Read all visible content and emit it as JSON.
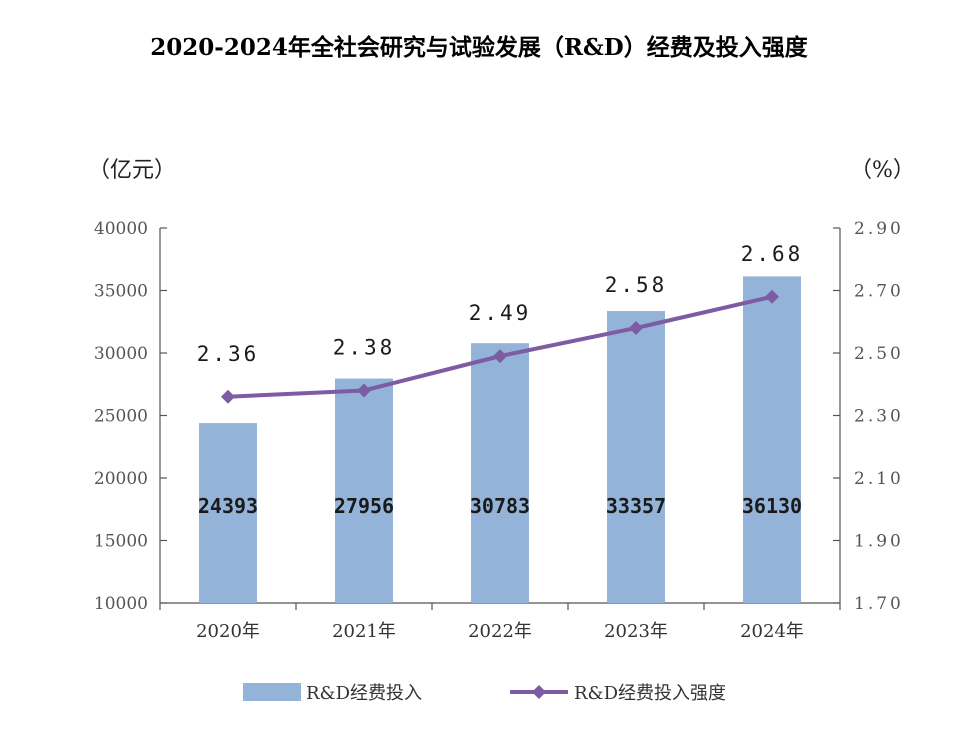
{
  "title": "2020-2024年全社会研究与试验发展（R&D）经费及投入强度",
  "left_unit": "（亿元）",
  "right_unit": "（%）",
  "colors": {
    "bar": "#94b3d9",
    "line": "#7d5ca3",
    "axis": "#555555"
  },
  "legend": {
    "bar_label": "R&D经费投入",
    "line_label": "R&D经费投入强度"
  },
  "chart_data": {
    "type": "bar",
    "categories": [
      "2020年",
      "2021年",
      "2022年",
      "2023年",
      "2024年"
    ],
    "series": [
      {
        "name": "R&D经费投入",
        "type": "bar",
        "axis": "left",
        "values": [
          24393,
          27956,
          30783,
          33357,
          36130
        ]
      },
      {
        "name": "R&D经费投入强度",
        "type": "line",
        "axis": "right",
        "values": [
          2.36,
          2.38,
          2.49,
          2.58,
          2.68
        ]
      }
    ],
    "bar_labels": [
      "24393",
      "27956",
      "30783",
      "33357",
      "36130"
    ],
    "line_labels": [
      "2.36",
      "2.38",
      "2.49",
      "2.58",
      "2.68"
    ],
    "y_left": {
      "min": 10000,
      "max": 40000,
      "ticks": [
        "40000",
        "35000",
        "30000",
        "25000",
        "20000",
        "15000",
        "10000"
      ]
    },
    "y_right": {
      "min": 1.7,
      "max": 2.9,
      "ticks": [
        "2.90",
        "2.70",
        "2.50",
        "2.30",
        "2.10",
        "1.90",
        "1.70"
      ]
    },
    "grid": false,
    "legend_position": "bottom"
  }
}
